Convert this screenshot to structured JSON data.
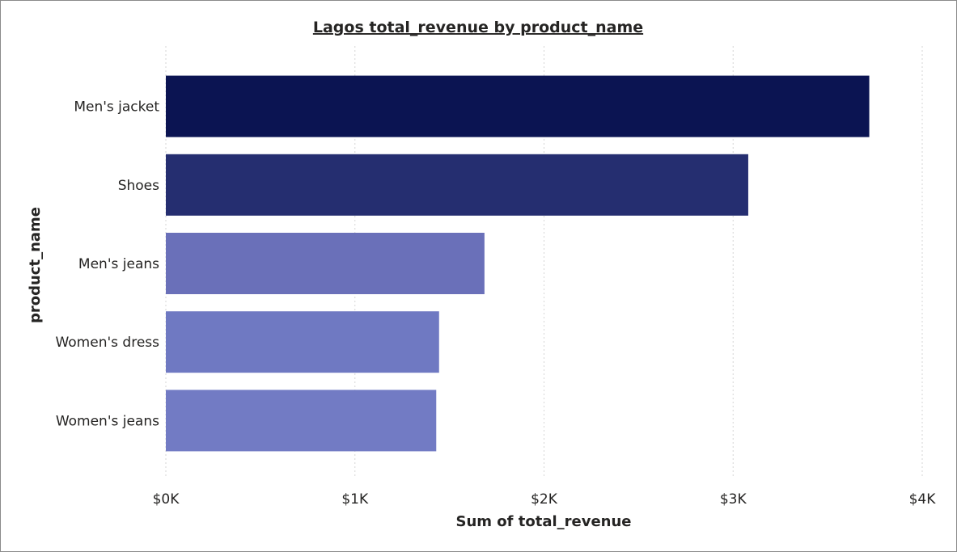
{
  "chart_data": {
    "type": "bar",
    "orientation": "horizontal",
    "title": "Lagos total_revenue by product_name",
    "xlabel": "Sum of total_revenue",
    "ylabel": "product_name",
    "categories": [
      "Men's jacket",
      "Shoes",
      "Men's jeans",
      "Women's dress",
      "Women's jeans"
    ],
    "values": [
      3720,
      3080,
      1685,
      1445,
      1430
    ],
    "xlim": [
      0,
      4000
    ],
    "xticks": [
      0,
      1000,
      2000,
      3000,
      4000
    ],
    "xtick_labels": [
      "$0K",
      "$1K",
      "$2K",
      "$3K",
      "$4K"
    ],
    "grid": true,
    "colors": [
      "#0b1452",
      "#252e70",
      "#6a70b9",
      "#6f79c2",
      "#727bc4"
    ]
  }
}
